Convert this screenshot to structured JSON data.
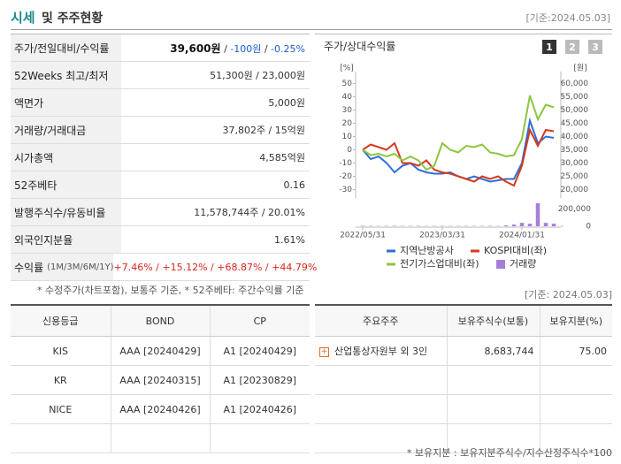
{
  "header": {
    "title": "시세",
    "title_rest": "및 주주현황",
    "date": "[기준:2024.05.03]"
  },
  "summary": {
    "rows": [
      {
        "label": "주가/전일대비/수익률",
        "parts": [
          {
            "text": "39,600원",
            "color": "#111111",
            "bold": true
          },
          {
            "text": " / ",
            "color": "#333333"
          },
          {
            "text": "-100원",
            "color": "#1a5fc4"
          },
          {
            "text": " / ",
            "color": "#333333"
          },
          {
            "text": "-0.25%",
            "color": "#1a5fc4"
          }
        ]
      },
      {
        "label": "52Weeks 최고/최저",
        "value": "51,300원 / 23,000원"
      },
      {
        "label": "액면가",
        "value": "5,000원"
      },
      {
        "label": "거래량/거래대금",
        "value": "37,802주 / 15억원"
      },
      {
        "label": "시가총액",
        "value": "4,585억원"
      },
      {
        "label": "52주베타",
        "value": "0.16"
      },
      {
        "label": "발행주식수/유동비율",
        "value": "11,578,744주 / 20.01%"
      },
      {
        "label": "외국인지분율",
        "value": "1.61%"
      },
      {
        "label": "수익률",
        "label_note": "(1M/3M/6M/1Y)",
        "parts": [
          {
            "text": "+7.46%",
            "color": "#d7261e"
          },
          {
            "text": " / ",
            "color": "#d7261e"
          },
          {
            "text": "+15.12%",
            "color": "#d7261e"
          },
          {
            "text": " / ",
            "color": "#d7261e"
          },
          {
            "text": "+68.87%",
            "color": "#d7261e"
          },
          {
            "text": " / ",
            "color": "#d7261e"
          },
          {
            "text": "+44.79%",
            "color": "#d7261e"
          }
        ]
      }
    ],
    "note": "* 수정주가(차트포함), 보통주 기준, * 52주베타: 주간수익률 기준"
  },
  "chart_data": {
    "type": "line",
    "title": "주가/상대수익률",
    "buttons": [
      "1",
      "2",
      "3"
    ],
    "y_label": "[%]",
    "y2_label": "[원]",
    "categories": [
      "2022/05/31",
      null,
      null,
      null,
      null,
      null,
      null,
      null,
      null,
      null,
      "2023/03/31",
      null,
      null,
      null,
      null,
      null,
      null,
      null,
      null,
      null,
      "2024/01/31",
      null,
      null,
      null,
      null
    ],
    "ylim": [
      -35,
      55
    ],
    "yticks": [
      50,
      40,
      30,
      20,
      10,
      0,
      -10,
      -20,
      -30
    ],
    "y2lim": [
      17500,
      62500
    ],
    "y2ticks": [
      {
        "value": 60000,
        "label": "60,000"
      },
      {
        "value": 55000,
        "label": "55,000"
      },
      {
        "value": 50000,
        "label": "50,000"
      },
      {
        "value": 45000,
        "label": "45,000"
      },
      {
        "value": 40000,
        "label": "40,000"
      },
      {
        "value": 35000,
        "label": "35,000"
      },
      {
        "value": 30000,
        "label": "30,000"
      },
      {
        "value": 25000,
        "label": "25,000"
      },
      {
        "value": 20000,
        "label": "20,000"
      }
    ],
    "y3lim": [
      0,
      280000
    ],
    "y3ticks": [
      {
        "value": 200000,
        "label": "200,000"
      },
      0
    ],
    "series": [
      {
        "name": "지역난방공사",
        "color": "#2e6fd6",
        "axis": "y2",
        "values": [
          35000,
          31500,
          32500,
          30000,
          26500,
          29000,
          30000,
          27500,
          26500,
          26000,
          26000,
          26500,
          25000,
          24000,
          25000,
          24000,
          23000,
          23500,
          24000,
          24000,
          30000,
          46000,
          37500,
          40000,
          39500
        ]
      },
      {
        "name": "KOSPI대비(좌)",
        "color": "#d43a1e",
        "values": [
          0,
          4,
          2,
          0,
          5,
          -10,
          -10,
          -12,
          -8,
          -15,
          -17,
          -18,
          -20,
          -22,
          -24,
          -20,
          -22,
          -20,
          -24,
          -27,
          -12,
          15,
          3,
          15,
          14
        ]
      },
      {
        "name": "전기가스업대비(좌)",
        "color": "#8cc63f",
        "values": [
          0,
          -4,
          -3,
          -5,
          -3,
          -8,
          -5,
          -8,
          -15,
          -12,
          5,
          0,
          -2,
          3,
          2,
          4,
          -2,
          -3,
          -5,
          -4,
          8,
          41,
          23,
          34,
          32
        ]
      }
    ],
    "volume": {
      "name": "거래량",
      "color": "#a57fd8",
      "axis": "y3",
      "values": [
        5000,
        4000,
        3000,
        4000,
        5000,
        3000,
        3000,
        4000,
        3000,
        3000,
        4000,
        3000,
        3000,
        4000,
        3000,
        3000,
        4000,
        3000,
        10000,
        20000,
        40000,
        30000,
        270000,
        40000,
        30000
      ]
    }
  },
  "date2": "[기준: 2024.05.03]",
  "credit": {
    "headers": [
      "신용등급",
      "BOND",
      "CP"
    ],
    "rows": [
      [
        "KIS",
        "AAA [20240429]",
        "A1 [20240429]"
      ],
      [
        "KR",
        "AAA [20240315]",
        "A1 [20230829]"
      ],
      [
        "NICE",
        "AAA [20240426]",
        "A1 [20240426]"
      ]
    ]
  },
  "holders": {
    "headers": [
      "주요주주",
      "보유주식수(보통)",
      "보유지분(%)"
    ],
    "rows": [
      [
        "산업통상자원부 외 3인",
        "8,683,744",
        "75.00"
      ]
    ],
    "note": "* 보유지분 : 보유지분주식수/지수산정주식수*100"
  }
}
